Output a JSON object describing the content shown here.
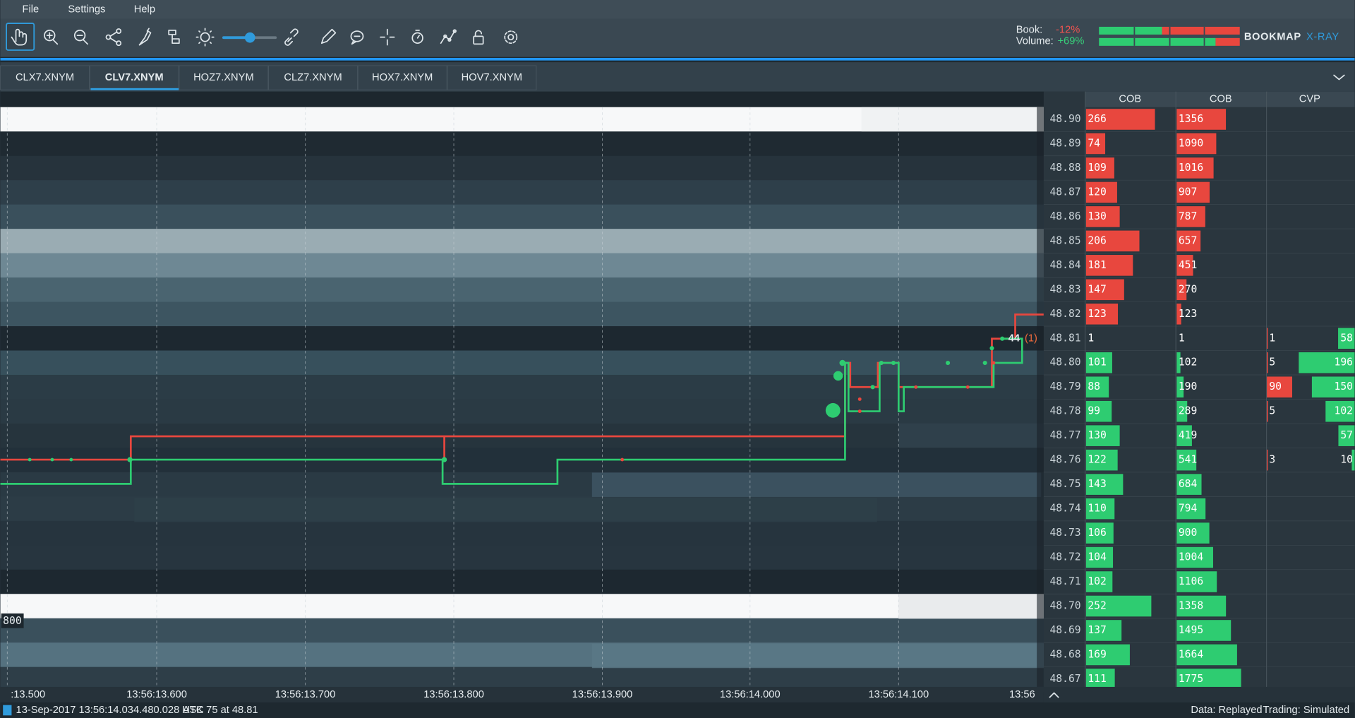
{
  "menu": [
    "File",
    "Settings",
    "Help"
  ],
  "indicators": {
    "book_label": "Book:",
    "book_value": "-12%",
    "volume_label": "Volume:",
    "volume_value": "+69%"
  },
  "brand": {
    "name": "BOOKMAP",
    "product": "X-RAY"
  },
  "tabs": [
    "CLX7.XNYM",
    "CLV7.XNYM",
    "HOZ7.XNYM",
    "CLZ7.XNYM",
    "HOX7.XNYM",
    "HOV7.XNYM"
  ],
  "active_tab": 1,
  "columns": [
    "COB",
    "COB",
    "CVP"
  ],
  "asks": [
    {
      "price": "48.90",
      "cob": 266,
      "cob2": 1356
    },
    {
      "price": "48.89",
      "cob": 74,
      "cob2": 1090
    },
    {
      "price": "48.88",
      "cob": 109,
      "cob2": 1016
    },
    {
      "price": "48.87",
      "cob": 120,
      "cob2": 907
    },
    {
      "price": "48.86",
      "cob": 130,
      "cob2": 787
    },
    {
      "price": "48.85",
      "cob": 206,
      "cob2": 657
    },
    {
      "price": "48.84",
      "cob": 181,
      "cob2": 451
    },
    {
      "price": "48.83",
      "cob": 147,
      "cob2": 270
    },
    {
      "price": "48.82",
      "cob": 123,
      "cob2": 123
    }
  ],
  "spread": {
    "price": "48.81",
    "cob": 1,
    "cob2": 1,
    "cvp_sell": 1,
    "cvp_buy": 58
  },
  "bids": [
    {
      "price": "48.80",
      "cob": 101,
      "cob2": 102,
      "cvp_sell": 5,
      "cvp_buy": 196
    },
    {
      "price": "48.79",
      "cob": 88,
      "cob2": 190,
      "cvp_sell": 90,
      "cvp_buy": 150
    },
    {
      "price": "48.78",
      "cob": 99,
      "cob2": 289,
      "cvp_sell": 5,
      "cvp_buy": 102
    },
    {
      "price": "48.77",
      "cob": 130,
      "cob2": 419,
      "cvp_buy": 57
    },
    {
      "price": "48.76",
      "cob": 122,
      "cob2": 541,
      "cvp_sell": 3,
      "cvp_buy": 10
    },
    {
      "price": "48.75",
      "cob": 143,
      "cob2": 684
    },
    {
      "price": "48.74",
      "cob": 110,
      "cob2": 794
    },
    {
      "price": "48.73",
      "cob": 106,
      "cob2": 900
    },
    {
      "price": "48.72",
      "cob": 104,
      "cob2": 1004
    },
    {
      "price": "48.71",
      "cob": 102,
      "cob2": 1106
    },
    {
      "price": "48.70",
      "cob": 252,
      "cob2": 1358
    },
    {
      "price": "48.69",
      "cob": 137,
      "cob2": 1495
    },
    {
      "price": "48.68",
      "cob": 169,
      "cob2": 1664
    },
    {
      "price": "48.67",
      "cob": 111,
      "cob2": 1775
    }
  ],
  "chart_labels": {
    "trade_size": "44",
    "trade_count": "(1)",
    "volume_marker": "800"
  },
  "time_axis": [
    ":13.500",
    "13:56:13.600",
    "13:56:13.700",
    "13:56:13.800",
    "13:56:13.900",
    "13:56:14.000",
    "13:56:14.100",
    "13:56"
  ],
  "status": {
    "timestamp": "13-Sep-2017 13:56:14.034.480.028 UTC",
    "last_trade": "ASK 75 at 48.81",
    "data_mode": "Data: Replayed",
    "trading_mode": "Trading: Simulated"
  }
}
